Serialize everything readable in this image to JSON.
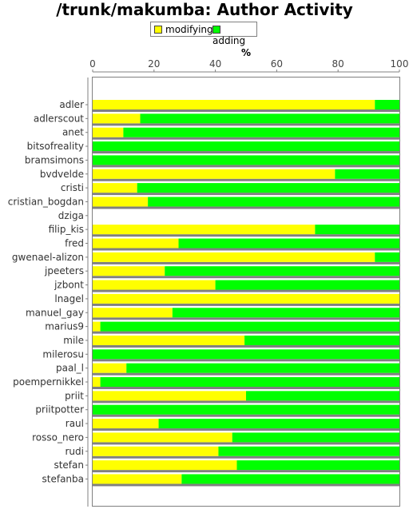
{
  "chart_data": {
    "type": "bar",
    "orientation": "horizontal",
    "stacked": true,
    "title": "/trunk/makumba: Author Activity",
    "xlabel": "%",
    "ylabel": "",
    "xlim": [
      0,
      100
    ],
    "x_ticks": [
      0,
      20,
      40,
      60,
      80,
      100
    ],
    "legend_position": "top-center",
    "grid": false,
    "categories": [
      "adler",
      "adlerscout",
      "anet",
      "bitsofreality",
      "bramsimons",
      "bvdvelde",
      "cristi",
      "cristian_bogdan",
      "dziga",
      "filip_kis",
      "fred",
      "gwenael-alizon",
      "jpeeters",
      "jzbont",
      "lnagel",
      "manuel_gay",
      "marius9",
      "mile",
      "milerosu",
      "paal_l",
      "poempernikkel",
      "priit",
      "priitpotter",
      "raul",
      "rosso_nero",
      "rudi",
      "stefan",
      "stefanba"
    ],
    "series": [
      {
        "name": "modifying",
        "color": "#ffff00",
        "values": [
          92,
          15.5,
          10,
          0,
          0,
          79,
          14.5,
          18,
          0,
          72.5,
          28,
          92,
          23.5,
          40,
          100,
          26,
          2.5,
          49.5,
          0,
          11,
          2.5,
          50,
          0,
          21.5,
          45.5,
          41,
          47,
          29
        ]
      },
      {
        "name": "adding",
        "color": "#00ff00",
        "values": [
          8,
          84.5,
          90,
          100,
          100,
          21,
          85.5,
          82,
          0,
          27.5,
          72,
          8,
          76.5,
          60,
          0,
          74,
          97.5,
          50.5,
          100,
          89,
          97.5,
          50,
          100,
          78.5,
          54.5,
          59,
          53,
          71
        ]
      }
    ]
  }
}
